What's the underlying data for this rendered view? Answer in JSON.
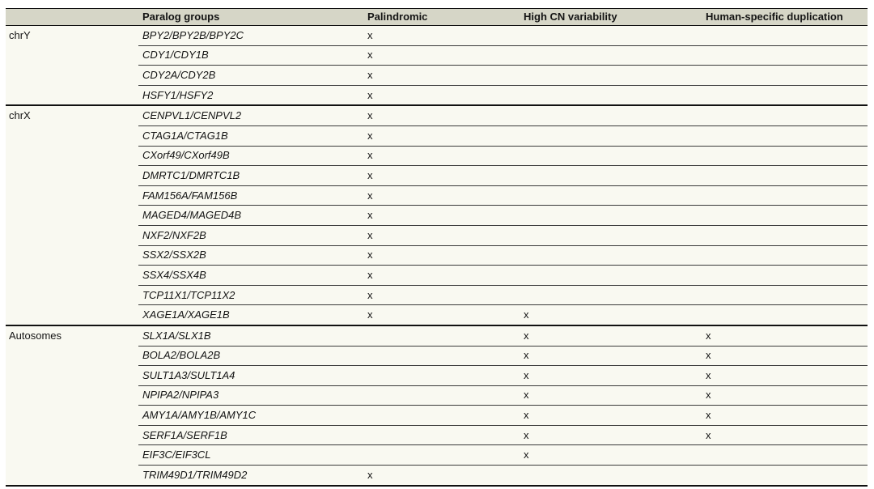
{
  "colors": {
    "header_bg": "#d6d6c7",
    "row_bg": "#f9f9f1",
    "border": "#111111",
    "text": "#141414"
  },
  "table": {
    "columns": {
      "group": "",
      "paralogs": "Paralog groups",
      "palindromic": "Palindromic",
      "high_cn": "High CN variability",
      "human_specific": "Human-specific duplication"
    },
    "sections": [
      {
        "label": "chrY",
        "rows": [
          {
            "paralogs": "BPY2/BPY2B/BPY2C",
            "palindromic": "x",
            "high_cn": "",
            "human_specific": ""
          },
          {
            "paralogs": "CDY1/CDY1B",
            "palindromic": "x",
            "high_cn": "",
            "human_specific": ""
          },
          {
            "paralogs": "CDY2A/CDY2B",
            "palindromic": "x",
            "high_cn": "",
            "human_specific": ""
          },
          {
            "paralogs": "HSFY1/HSFY2",
            "palindromic": "x",
            "high_cn": "",
            "human_specific": ""
          }
        ]
      },
      {
        "label": "chrX",
        "rows": [
          {
            "paralogs": "CENPVL1/CENPVL2",
            "palindromic": "x",
            "high_cn": "",
            "human_specific": ""
          },
          {
            "paralogs": "CTAG1A/CTAG1B",
            "palindromic": "x",
            "high_cn": "",
            "human_specific": ""
          },
          {
            "paralogs": "CXorf49/CXorf49B",
            "palindromic": "x",
            "high_cn": "",
            "human_specific": ""
          },
          {
            "paralogs": "DMRTC1/DMRTC1B",
            "palindromic": "x",
            "high_cn": "",
            "human_specific": ""
          },
          {
            "paralogs": "FAM156A/FAM156B",
            "palindromic": "x",
            "high_cn": "",
            "human_specific": ""
          },
          {
            "paralogs": "MAGED4/MAGED4B",
            "palindromic": "x",
            "high_cn": "",
            "human_specific": ""
          },
          {
            "paralogs": "NXF2/NXF2B",
            "palindromic": "x",
            "high_cn": "",
            "human_specific": ""
          },
          {
            "paralogs": "SSX2/SSX2B",
            "palindromic": "x",
            "high_cn": "",
            "human_specific": ""
          },
          {
            "paralogs": "SSX4/SSX4B",
            "palindromic": "x",
            "high_cn": "",
            "human_specific": ""
          },
          {
            "paralogs": "TCP11X1/TCP11X2",
            "palindromic": "x",
            "high_cn": "",
            "human_specific": ""
          },
          {
            "paralogs": "XAGE1A/XAGE1B",
            "palindromic": "x",
            "high_cn": "x",
            "human_specific": ""
          }
        ]
      },
      {
        "label": "Autosomes",
        "rows": [
          {
            "paralogs": "SLX1A/SLX1B",
            "palindromic": "",
            "high_cn": "x",
            "human_specific": "x"
          },
          {
            "paralogs": "BOLA2/BOLA2B",
            "palindromic": "",
            "high_cn": "x",
            "human_specific": "x"
          },
          {
            "paralogs": "SULT1A3/SULT1A4",
            "palindromic": "",
            "high_cn": "x",
            "human_specific": "x"
          },
          {
            "paralogs": "NPIPA2/NPIPA3",
            "palindromic": "",
            "high_cn": "x",
            "human_specific": "x"
          },
          {
            "paralogs": "AMY1A/AMY1B/AMY1C",
            "palindromic": "",
            "high_cn": "x",
            "human_specific": "x"
          },
          {
            "paralogs": "SERF1A/SERF1B",
            "palindromic": "",
            "high_cn": "x",
            "human_specific": "x"
          },
          {
            "paralogs": "EIF3C/EIF3CL",
            "palindromic": "",
            "high_cn": "x",
            "human_specific": ""
          },
          {
            "paralogs": "TRIM49D1/TRIM49D2",
            "palindromic": "x",
            "high_cn": "",
            "human_specific": ""
          }
        ]
      }
    ]
  }
}
